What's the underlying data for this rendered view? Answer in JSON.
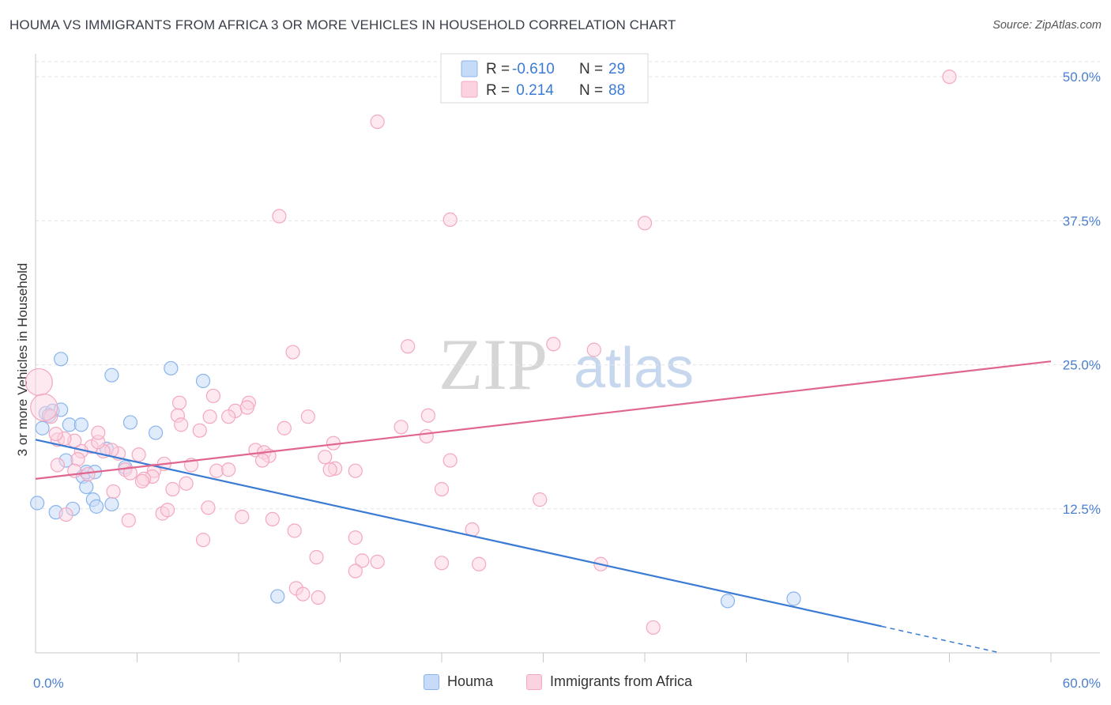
{
  "header": {
    "title": "HOUMA VS IMMIGRANTS FROM AFRICA 3 OR MORE VEHICLES IN HOUSEHOLD CORRELATION CHART",
    "source": "Source: ZipAtlas.com"
  },
  "watermark": {
    "zip": "ZIP",
    "atlas": "atlas"
  },
  "legend_top": [
    {
      "r_label": "R = ",
      "r_value": "-0.610",
      "n_label": "N = ",
      "n_value": "29",
      "color": "#8ab4ec"
    },
    {
      "r_label": "R = ",
      "r_value": " 0.214",
      "n_label": "N = ",
      "n_value": "88",
      "color": "#f4a7c0"
    }
  ],
  "legend_bottom": [
    {
      "label": "Houma",
      "color": "#8ab4ec"
    },
    {
      "label": "Immigrants from Africa",
      "color": "#f4a7c0"
    }
  ],
  "chart_data": {
    "type": "scatter",
    "title": "HOUMA VS IMMIGRANTS FROM AFRICA 3 OR MORE VEHICLES IN HOUSEHOLD CORRELATION CHART",
    "xlabel": "",
    "ylabel": "3 or more Vehicles in Household",
    "xlim": [
      0,
      60
    ],
    "ylim": [
      0,
      52
    ],
    "x_tick_labels": [
      "0.0%",
      "60.0%"
    ],
    "y_ticks": [
      12.5,
      25.0,
      37.5,
      50.0
    ],
    "y_tick_labels": [
      "12.5%",
      "25.0%",
      "37.5%",
      "50.0%"
    ],
    "grid": true,
    "legend_position": "top-center",
    "accent_colors": {
      "houma": "#3b7bd4",
      "africa": "#e06690",
      "tick_text": "#4a7fd0"
    },
    "series": [
      {
        "name": "Houma",
        "color": "#8ab4ec",
        "line_color": "#3b7bd4",
        "r": -0.61,
        "n": 29,
        "trend": {
          "x0": 0,
          "y0": 18.5,
          "x1": 50,
          "y1": 2.3,
          "dash_to_x": 57,
          "dash_to_y": 0.0
        },
        "points": [
          [
            0.4,
            19.5
          ],
          [
            0.6,
            20.8
          ],
          [
            1.0,
            21.0
          ],
          [
            1.5,
            25.5
          ],
          [
            1.5,
            21.1
          ],
          [
            2.0,
            19.8
          ],
          [
            2.7,
            19.8
          ],
          [
            1.8,
            16.7
          ],
          [
            2.8,
            15.3
          ],
          [
            3.0,
            15.7
          ],
          [
            3.5,
            15.7
          ],
          [
            3.0,
            14.4
          ],
          [
            3.4,
            13.3
          ],
          [
            3.6,
            12.7
          ],
          [
            4.2,
            17.7
          ],
          [
            4.5,
            12.9
          ],
          [
            4.5,
            24.1
          ],
          [
            5.3,
            16.1
          ],
          [
            5.6,
            20.0
          ],
          [
            7.1,
            19.1
          ],
          [
            8.0,
            24.7
          ],
          [
            9.9,
            23.6
          ],
          [
            14.3,
            4.9
          ],
          [
            40.9,
            4.5
          ],
          [
            44.8,
            4.7
          ],
          [
            0.1,
            13.0
          ],
          [
            1.2,
            12.2
          ],
          [
            2.2,
            12.5
          ],
          [
            0.8,
            20.6
          ]
        ],
        "big_points": []
      },
      {
        "name": "Immigrants from Africa",
        "color": "#f4a7c0",
        "line_color": "#e06690",
        "r": 0.214,
        "n": 88,
        "trend": {
          "x0": 0,
          "y0": 15.1,
          "x1": 60,
          "y1": 25.3
        },
        "points": [
          [
            54.0,
            50.0
          ],
          [
            20.2,
            46.1
          ],
          [
            14.4,
            37.9
          ],
          [
            24.5,
            37.6
          ],
          [
            36.0,
            37.3
          ],
          [
            15.2,
            26.1
          ],
          [
            22.0,
            26.6
          ],
          [
            30.6,
            26.8
          ],
          [
            33.0,
            26.3
          ],
          [
            10.5,
            22.3
          ],
          [
            12.6,
            21.7
          ],
          [
            11.8,
            21.0
          ],
          [
            11.4,
            20.5
          ],
          [
            12.5,
            21.3
          ],
          [
            8.5,
            21.7
          ],
          [
            8.4,
            20.6
          ],
          [
            8.6,
            19.8
          ],
          [
            9.7,
            19.3
          ],
          [
            10.3,
            20.5
          ],
          [
            14.7,
            19.5
          ],
          [
            16.1,
            20.5
          ],
          [
            21.6,
            19.6
          ],
          [
            23.2,
            20.6
          ],
          [
            23.1,
            18.8
          ],
          [
            17.6,
            18.2
          ],
          [
            17.1,
            17.0
          ],
          [
            17.7,
            16.0
          ],
          [
            17.4,
            15.9
          ],
          [
            18.9,
            15.8
          ],
          [
            24.5,
            16.7
          ],
          [
            24.0,
            14.2
          ],
          [
            13.0,
            17.6
          ],
          [
            13.5,
            17.4
          ],
          [
            13.8,
            17.1
          ],
          [
            13.4,
            16.7
          ],
          [
            10.7,
            15.8
          ],
          [
            11.4,
            15.9
          ],
          [
            9.2,
            16.3
          ],
          [
            29.8,
            13.3
          ],
          [
            25.8,
            10.7
          ],
          [
            7.6,
            16.4
          ],
          [
            6.1,
            17.2
          ],
          [
            7.0,
            15.8
          ],
          [
            6.9,
            15.3
          ],
          [
            6.4,
            15.1
          ],
          [
            6.3,
            14.9
          ],
          [
            5.3,
            15.9
          ],
          [
            5.6,
            15.6
          ],
          [
            4.9,
            17.3
          ],
          [
            4.5,
            17.6
          ],
          [
            4.0,
            17.5
          ],
          [
            3.3,
            17.9
          ],
          [
            2.7,
            17.5
          ],
          [
            3.7,
            18.3
          ],
          [
            3.7,
            19.1
          ],
          [
            2.3,
            18.4
          ],
          [
            1.3,
            18.5
          ],
          [
            1.3,
            16.3
          ],
          [
            2.5,
            16.8
          ],
          [
            2.3,
            15.8
          ],
          [
            3.1,
            15.5
          ],
          [
            1.7,
            18.6
          ],
          [
            1.2,
            19.0
          ],
          [
            4.6,
            14.0
          ],
          [
            5.5,
            11.5
          ],
          [
            7.5,
            12.1
          ],
          [
            7.8,
            12.4
          ],
          [
            8.1,
            14.2
          ],
          [
            8.9,
            14.7
          ],
          [
            10.2,
            12.6
          ],
          [
            12.2,
            11.8
          ],
          [
            14.0,
            11.6
          ],
          [
            15.3,
            10.6
          ],
          [
            9.9,
            9.8
          ],
          [
            18.9,
            10.0
          ],
          [
            16.6,
            8.3
          ],
          [
            19.3,
            8.0
          ],
          [
            20.2,
            7.9
          ],
          [
            18.9,
            7.1
          ],
          [
            24.0,
            7.8
          ],
          [
            26.2,
            7.7
          ],
          [
            33.4,
            7.7
          ],
          [
            15.4,
            5.6
          ],
          [
            15.8,
            5.1
          ],
          [
            16.7,
            4.8
          ],
          [
            36.5,
            2.2
          ],
          [
            1.8,
            12.0
          ],
          [
            0.9,
            20.5
          ]
        ],
        "big_points": [
          [
            0.2,
            23.5
          ],
          [
            0.5,
            21.3
          ]
        ]
      }
    ]
  }
}
